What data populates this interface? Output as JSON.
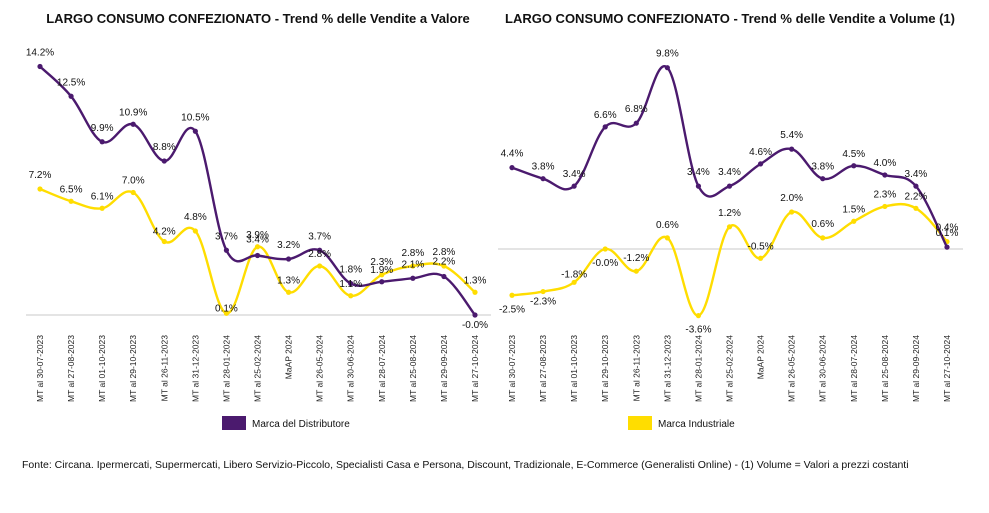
{
  "source_note": "Fonte: Circana. Ipermercati, Supermercati, Libero Servizio-Piccolo, Specialisti Casa e Persona, Discount, Tradizionale, E-Commerce (Generalisti Online) - (1) Volume = Valori a prezzi costanti",
  "colors": {
    "distributore": "#4b1a6e",
    "industriale": "#ffdd00",
    "axis": "#c8c8c8"
  },
  "chart_data": [
    {
      "type": "line",
      "title": "LARGO CONSUMO CONFEZIONATO - Trend % delle Vendite a Valore",
      "categories": [
        "MT al 30-07-2023",
        "MT al 27-08-2023",
        "MT al 01-10-2023",
        "MT al 29-10-2023",
        "MT al 26-11-2023",
        "MT al 31-12-2023",
        "MT al 28-01-2024",
        "MT al 25-02-2024",
        "MaAP 2024",
        "MT al 26-05-2024",
        "MT al 30-06-2024",
        "MT al 28-07-2024",
        "MT al 25-08-2024",
        "MT al 29-09-2024",
        "MT al 27-10-2024"
      ],
      "series": [
        {
          "name": "Marca del Distributore",
          "values": [
            14.2,
            12.5,
            9.9,
            10.9,
            8.8,
            10.5,
            3.7,
            3.4,
            3.2,
            3.7,
            1.8,
            1.9,
            2.1,
            2.2,
            -0.0
          ],
          "labels": [
            "14.2%",
            "12.5%",
            "9.9%",
            "10.9%",
            "8.8%",
            "10.5%",
            "3.7%",
            "3.4%",
            "3.2%",
            "3.7%",
            "1.8%",
            "1.9%",
            "2.1%",
            "2.2%",
            "-0.0%"
          ]
        },
        {
          "name": "Marca Industriale",
          "values": [
            7.2,
            6.5,
            6.1,
            7.0,
            4.2,
            4.8,
            0.1,
            3.9,
            1.3,
            2.8,
            1.1,
            2.3,
            2.8,
            2.8,
            1.3
          ],
          "labels": [
            "7.2%",
            "6.5%",
            "6.1%",
            "7.0%",
            "4.2%",
            "4.8%",
            "0.1%",
            "3.9%",
            "1.3%",
            "2.8%",
            "1.1%",
            "2.3%",
            "2.8%",
            "2.8%",
            "1.3%"
          ]
        }
      ],
      "grid": false,
      "legend": "bottom"
    },
    {
      "type": "line",
      "title": "LARGO CONSUMO CONFEZIONATO - Trend % delle Vendite a Volume (1)",
      "categories": [
        "MT al 30-07-2023",
        "MT al 27-08-2023",
        "MT al 01-10-2023",
        "MT al 29-10-2023",
        "MT al 26-11-2023",
        "MT al 31-12-2023",
        "MT al 28-01-2024",
        "MT al 25-02-2024",
        "MaAP 2024",
        "MT al 26-05-2024",
        "MT al 30-06-2024",
        "MT al 28-07-2024",
        "MT al 25-08-2024",
        "MT al 29-09-2024",
        "MT al 27-10-2024"
      ],
      "series": [
        {
          "name": "Marca del Distributore",
          "values": [
            4.4,
            3.8,
            3.4,
            6.6,
            6.8,
            9.8,
            3.4,
            3.4,
            4.6,
            5.4,
            3.8,
            4.5,
            4.0,
            3.4,
            0.1
          ],
          "labels": [
            "4.4%",
            "3.8%",
            "3.4%",
            "6.6%",
            "6.8%",
            "9.8%",
            "3.4%",
            "3.4%",
            "4.6%",
            "5.4%",
            "3.8%",
            "4.5%",
            "4.0%",
            "3.4%",
            "0.1%"
          ]
        },
        {
          "name": "Marca Industriale",
          "values": [
            -2.5,
            -2.3,
            -1.8,
            -0.0,
            -1.2,
            0.6,
            -3.6,
            1.2,
            -0.5,
            2.0,
            0.6,
            1.5,
            2.3,
            2.2,
            0.4
          ],
          "labels": [
            "-2.5%",
            "-2.3%",
            "-1.8%",
            "-0.0%",
            "-1.2%",
            "0.6%",
            "-3.6%",
            "1.2%",
            "-0.5%",
            "2.0%",
            "0.6%",
            "1.5%",
            "2.3%",
            "2.2%",
            "0.4%"
          ]
        }
      ],
      "grid": false,
      "legend": "bottom"
    }
  ]
}
